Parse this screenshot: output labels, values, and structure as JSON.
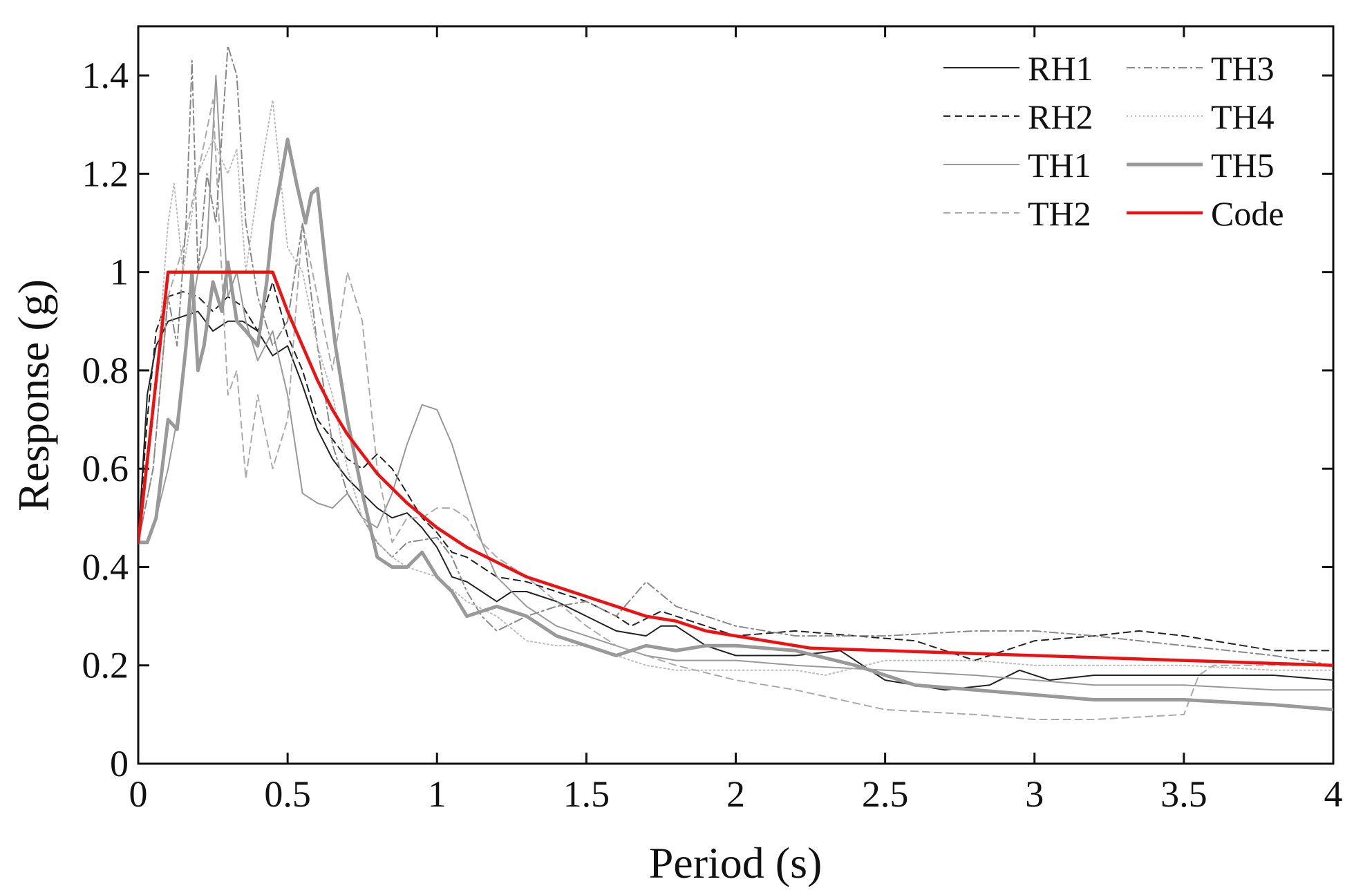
{
  "chart_data": {
    "type": "line",
    "title": "",
    "xlabel": "Period (s)",
    "ylabel": "Response (g)",
    "xlim": [
      0,
      4
    ],
    "ylim": [
      0,
      1.5
    ],
    "xticks": [
      0,
      0.5,
      1,
      1.5,
      2,
      2.5,
      3,
      3.5,
      4
    ],
    "xtick_labels": [
      "0",
      "0.5",
      "1",
      "1.5",
      "2",
      "2.5",
      "3",
      "3.5",
      "4"
    ],
    "yticks": [
      0,
      0.2,
      0.4,
      0.6,
      0.8,
      1.0,
      1.2,
      1.4
    ],
    "ytick_labels": [
      "0",
      "0.2",
      "0.4",
      "0.6",
      "0.8",
      "1",
      "1.2",
      "1.4"
    ],
    "grid": false,
    "legend_position": "top-right",
    "series": [
      {
        "name": "RH1",
        "color": "#222222",
        "style": "solid",
        "x": [
          0,
          0.03,
          0.06,
          0.1,
          0.15,
          0.2,
          0.25,
          0.3,
          0.35,
          0.4,
          0.45,
          0.5,
          0.55,
          0.6,
          0.65,
          0.7,
          0.75,
          0.8,
          0.85,
          0.9,
          0.95,
          1.0,
          1.05,
          1.1,
          1.15,
          1.2,
          1.25,
          1.3,
          1.4,
          1.5,
          1.6,
          1.7,
          1.75,
          1.8,
          1.9,
          2.0,
          2.2,
          2.35,
          2.5,
          2.7,
          2.85,
          2.95,
          3.05,
          3.2,
          3.5,
          3.8,
          4.0
        ],
        "y": [
          0.45,
          0.75,
          0.85,
          0.9,
          0.91,
          0.92,
          0.88,
          0.9,
          0.9,
          0.88,
          0.83,
          0.85,
          0.77,
          0.68,
          0.62,
          0.58,
          0.55,
          0.52,
          0.5,
          0.51,
          0.48,
          0.44,
          0.38,
          0.37,
          0.35,
          0.33,
          0.35,
          0.35,
          0.33,
          0.3,
          0.27,
          0.26,
          0.28,
          0.28,
          0.24,
          0.22,
          0.22,
          0.23,
          0.17,
          0.15,
          0.16,
          0.19,
          0.17,
          0.18,
          0.18,
          0.18,
          0.17
        ]
      },
      {
        "name": "RH2",
        "color": "#222222",
        "style": "dashed",
        "x": [
          0,
          0.03,
          0.06,
          0.1,
          0.15,
          0.2,
          0.25,
          0.3,
          0.35,
          0.4,
          0.45,
          0.5,
          0.55,
          0.6,
          0.65,
          0.7,
          0.75,
          0.8,
          0.85,
          0.9,
          0.95,
          1.0,
          1.05,
          1.1,
          1.15,
          1.2,
          1.3,
          1.4,
          1.5,
          1.6,
          1.65,
          1.75,
          1.85,
          2.0,
          2.2,
          2.4,
          2.6,
          2.8,
          3.0,
          3.2,
          3.35,
          3.5,
          3.7,
          3.8,
          4.0
        ],
        "y": [
          0.45,
          0.7,
          0.88,
          0.95,
          0.96,
          0.95,
          0.92,
          0.95,
          0.93,
          0.88,
          0.98,
          0.87,
          0.8,
          0.7,
          0.66,
          0.62,
          0.6,
          0.63,
          0.6,
          0.55,
          0.5,
          0.47,
          0.43,
          0.42,
          0.4,
          0.38,
          0.37,
          0.35,
          0.33,
          0.3,
          0.28,
          0.31,
          0.29,
          0.26,
          0.27,
          0.26,
          0.25,
          0.21,
          0.25,
          0.26,
          0.27,
          0.26,
          0.24,
          0.23,
          0.23
        ]
      },
      {
        "name": "TH1",
        "color": "#999999",
        "style": "solid",
        "x": [
          0,
          0.03,
          0.06,
          0.1,
          0.13,
          0.16,
          0.2,
          0.23,
          0.26,
          0.3,
          0.33,
          0.36,
          0.4,
          0.45,
          0.5,
          0.55,
          0.6,
          0.65,
          0.7,
          0.75,
          0.8,
          0.85,
          0.9,
          0.95,
          1.0,
          1.05,
          1.1,
          1.15,
          1.2,
          1.3,
          1.4,
          1.5,
          1.6,
          1.7,
          1.8,
          2.0,
          2.2,
          2.5,
          2.8,
          3.0,
          3.2,
          3.5,
          3.8,
          4.0
        ],
        "y": [
          0.45,
          0.45,
          0.5,
          0.6,
          0.7,
          0.85,
          1.0,
          1.05,
          1.4,
          0.95,
          1.0,
          0.9,
          0.82,
          0.88,
          0.75,
          0.55,
          0.53,
          0.52,
          0.55,
          0.5,
          0.48,
          0.55,
          0.65,
          0.73,
          0.72,
          0.65,
          0.55,
          0.45,
          0.38,
          0.32,
          0.28,
          0.26,
          0.24,
          0.22,
          0.21,
          0.21,
          0.2,
          0.19,
          0.18,
          0.17,
          0.16,
          0.16,
          0.15,
          0.15
        ]
      },
      {
        "name": "TH2",
        "color": "#aaaaaa",
        "style": "dashed",
        "x": [
          0,
          0.05,
          0.1,
          0.15,
          0.2,
          0.25,
          0.3,
          0.33,
          0.36,
          0.4,
          0.45,
          0.5,
          0.55,
          0.6,
          0.65,
          0.7,
          0.75,
          0.8,
          0.85,
          0.9,
          0.95,
          1.0,
          1.05,
          1.1,
          1.15,
          1.2,
          1.3,
          1.4,
          1.5,
          1.6,
          1.7,
          1.8,
          2.0,
          2.2,
          2.5,
          2.8,
          3.0,
          3.2,
          3.5,
          3.55,
          3.6,
          3.8,
          4.0
        ],
        "y": [
          0.45,
          0.6,
          0.95,
          1.05,
          1.2,
          1.35,
          0.75,
          0.8,
          0.58,
          0.75,
          0.6,
          0.7,
          1.1,
          0.95,
          0.8,
          1.0,
          0.9,
          0.6,
          0.45,
          0.5,
          0.5,
          0.52,
          0.52,
          0.5,
          0.45,
          0.42,
          0.38,
          0.33,
          0.28,
          0.24,
          0.22,
          0.2,
          0.17,
          0.15,
          0.11,
          0.1,
          0.09,
          0.09,
          0.1,
          0.18,
          0.2,
          0.2,
          0.2
        ]
      },
      {
        "name": "TH3",
        "color": "#888888",
        "style": "dashdot",
        "x": [
          0,
          0.05,
          0.1,
          0.13,
          0.16,
          0.18,
          0.2,
          0.23,
          0.26,
          0.3,
          0.33,
          0.36,
          0.4,
          0.45,
          0.5,
          0.55,
          0.6,
          0.65,
          0.7,
          0.75,
          0.8,
          0.85,
          0.9,
          1.0,
          1.05,
          1.1,
          1.15,
          1.2,
          1.3,
          1.4,
          1.5,
          1.6,
          1.7,
          1.8,
          2.0,
          2.2,
          2.5,
          2.8,
          3.0,
          3.2,
          3.5,
          3.8,
          4.0
        ],
        "y": [
          0.45,
          0.6,
          0.95,
          0.85,
          1.1,
          1.43,
          1.0,
          1.2,
          1.1,
          1.46,
          1.4,
          1.1,
          0.95,
          0.85,
          0.9,
          1.1,
          0.85,
          0.65,
          0.55,
          0.5,
          0.45,
          0.42,
          0.45,
          0.46,
          0.42,
          0.35,
          0.3,
          0.27,
          0.3,
          0.32,
          0.33,
          0.3,
          0.37,
          0.32,
          0.28,
          0.26,
          0.26,
          0.27,
          0.27,
          0.26,
          0.24,
          0.22,
          0.2
        ]
      },
      {
        "name": "TH4",
        "color": "#bbbbbb",
        "style": "dotted",
        "x": [
          0,
          0.05,
          0.1,
          0.12,
          0.15,
          0.2,
          0.25,
          0.3,
          0.33,
          0.36,
          0.4,
          0.45,
          0.5,
          0.55,
          0.6,
          0.65,
          0.7,
          0.75,
          0.8,
          0.85,
          0.9,
          1.0,
          1.1,
          1.2,
          1.3,
          1.4,
          1.5,
          1.6,
          1.7,
          1.8,
          2.0,
          2.2,
          2.3,
          2.5,
          2.8,
          3.0,
          3.2,
          3.5,
          3.8,
          4.0
        ],
        "y": [
          0.45,
          0.7,
          1.1,
          1.18,
          1.0,
          1.2,
          1.27,
          1.2,
          1.25,
          1.0,
          1.17,
          1.35,
          1.05,
          1.0,
          0.85,
          0.75,
          0.6,
          0.5,
          0.45,
          0.42,
          0.4,
          0.38,
          0.33,
          0.3,
          0.25,
          0.24,
          0.24,
          0.22,
          0.2,
          0.19,
          0.19,
          0.19,
          0.18,
          0.21,
          0.21,
          0.2,
          0.2,
          0.2,
          0.19,
          0.19
        ]
      },
      {
        "name": "TH5",
        "color": "#999999",
        "style": "solid-thick",
        "x": [
          0,
          0.03,
          0.06,
          0.1,
          0.13,
          0.16,
          0.18,
          0.2,
          0.22,
          0.25,
          0.28,
          0.3,
          0.33,
          0.36,
          0.4,
          0.43,
          0.45,
          0.48,
          0.5,
          0.53,
          0.56,
          0.58,
          0.6,
          0.63,
          0.66,
          0.7,
          0.75,
          0.8,
          0.85,
          0.9,
          0.95,
          1.0,
          1.05,
          1.1,
          1.15,
          1.2,
          1.3,
          1.4,
          1.5,
          1.6,
          1.7,
          1.8,
          1.9,
          2.0,
          2.2,
          2.4,
          2.6,
          2.8,
          3.0,
          3.2,
          3.5,
          3.8,
          4.0
        ],
        "y": [
          0.45,
          0.45,
          0.5,
          0.7,
          0.68,
          0.85,
          1.0,
          0.8,
          0.85,
          0.98,
          0.92,
          1.02,
          0.9,
          0.88,
          0.85,
          0.98,
          1.1,
          1.2,
          1.27,
          1.18,
          1.1,
          1.16,
          1.17,
          1.0,
          0.85,
          0.7,
          0.55,
          0.42,
          0.4,
          0.4,
          0.43,
          0.38,
          0.35,
          0.3,
          0.31,
          0.32,
          0.3,
          0.26,
          0.24,
          0.22,
          0.24,
          0.23,
          0.24,
          0.24,
          0.23,
          0.2,
          0.16,
          0.15,
          0.14,
          0.13,
          0.13,
          0.12,
          0.11
        ]
      },
      {
        "name": "Code",
        "color": "#ee1111",
        "style": "solid-bold",
        "x": [
          0,
          0.1,
          0.45,
          0.5,
          0.55,
          0.6,
          0.65,
          0.7,
          0.8,
          0.9,
          1.0,
          1.1,
          1.2,
          1.3,
          1.4,
          1.5,
          1.6,
          1.7,
          1.8,
          1.9,
          2.0,
          2.1,
          2.25,
          2.5,
          3.0,
          3.5,
          4.0
        ],
        "y": [
          0.45,
          1.0,
          1.0,
          0.92,
          0.85,
          0.78,
          0.72,
          0.67,
          0.59,
          0.53,
          0.48,
          0.44,
          0.41,
          0.38,
          0.36,
          0.34,
          0.32,
          0.3,
          0.29,
          0.27,
          0.26,
          0.25,
          0.235,
          0.23,
          0.22,
          0.21,
          0.2
        ]
      }
    ]
  }
}
